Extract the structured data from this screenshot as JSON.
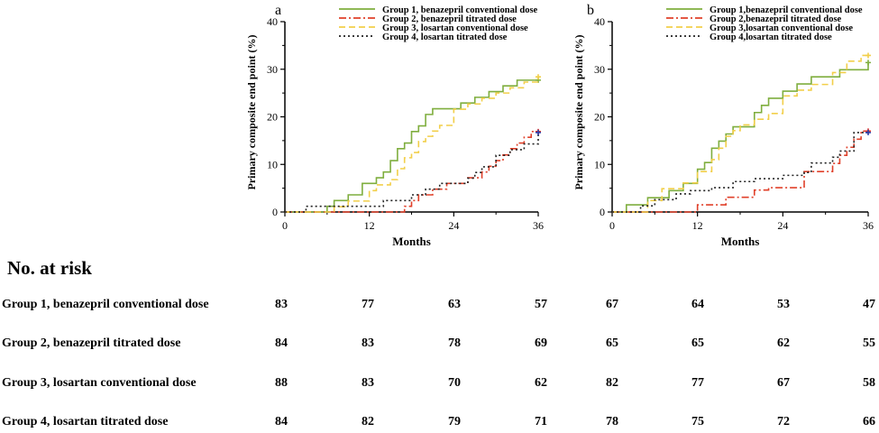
{
  "chart_data": [
    {
      "type": "line",
      "panel": "a",
      "ylabel": "Primary composite end point (%)",
      "xlabel": "Months",
      "xlim": [
        0,
        36
      ],
      "ylim": [
        0,
        40
      ],
      "x_ticks": [
        "0",
        "12",
        "24",
        "36"
      ],
      "y_ticks": [
        "0",
        "10",
        "20",
        "30",
        "40"
      ],
      "legend_position": "top-center",
      "series": [
        {
          "name": "Group 1, benazepril conventional dose",
          "color": "#7fae3e",
          "dash": "solid",
          "x": [
            0,
            3,
            6,
            7,
            9,
            11,
            13,
            14,
            15,
            16,
            17,
            18,
            19,
            20,
            21,
            23,
            25,
            27,
            29,
            31,
            33,
            35,
            36
          ],
          "y": [
            0,
            0,
            1.2,
            2.4,
            3.6,
            6.0,
            7.2,
            8.4,
            10.8,
            13.3,
            14.5,
            16.9,
            18.1,
            20.5,
            21.7,
            21.7,
            22.9,
            24.1,
            25.3,
            26.5,
            27.7,
            27.7,
            27.7
          ]
        },
        {
          "name": "Group 2, benazepril titrated dose",
          "color": "#e0402a",
          "dash": "dashdot",
          "x": [
            0,
            13,
            17,
            18,
            19,
            21,
            23,
            24,
            26,
            27,
            28,
            29,
            30,
            31,
            32,
            33,
            34,
            35,
            36
          ],
          "y": [
            0,
            0,
            1.2,
            2.4,
            3.6,
            4.8,
            6.0,
            6.0,
            7.2,
            7.2,
            8.4,
            9.6,
            10.8,
            12.0,
            13.3,
            14.5,
            15.7,
            16.9,
            16.9
          ]
        },
        {
          "name": "Group 3, losartan conventional dose",
          "color": "#f2cf4a",
          "dash": "dashed",
          "x": [
            0,
            5,
            7,
            9,
            12,
            13,
            15,
            16,
            17,
            18,
            19,
            20,
            21,
            22,
            24,
            26,
            28,
            30,
            32,
            34,
            36
          ],
          "y": [
            0,
            0,
            1.1,
            2.3,
            4.5,
            5.7,
            6.8,
            9.1,
            11.4,
            12.5,
            14.8,
            15.9,
            17.0,
            18.2,
            21.6,
            22.7,
            23.9,
            25.0,
            26.1,
            27.3,
            28.4
          ]
        },
        {
          "name": "Group 4, losartan titrated dose",
          "color": "#222222",
          "dash": "dotted",
          "x": [
            0,
            3,
            12,
            14,
            18,
            20,
            22,
            24,
            26,
            27,
            28,
            30,
            32,
            34,
            35,
            36
          ],
          "y": [
            0,
            1.2,
            1.2,
            2.4,
            3.6,
            4.8,
            6.0,
            6.0,
            7.1,
            8.3,
            9.5,
            11.9,
            13.1,
            14.3,
            14.3,
            16.7
          ]
        }
      ]
    },
    {
      "type": "line",
      "panel": "b",
      "ylabel": "Primary composite end point (%)",
      "xlabel": "Months",
      "xlim": [
        0,
        36
      ],
      "ylim": [
        0,
        40
      ],
      "x_ticks": [
        "0",
        "12",
        "24",
        "36"
      ],
      "y_ticks": [
        "0",
        "10",
        "20",
        "30",
        "40"
      ],
      "legend_position": "top-center",
      "series": [
        {
          "name": "Group 1,benazepril conventional dose",
          "color": "#7fae3e",
          "dash": "solid",
          "x": [
            0,
            2,
            5,
            8,
            10,
            12,
            13,
            14,
            15,
            16,
            17,
            20,
            21,
            22,
            24,
            26,
            28,
            30,
            32,
            34,
            36
          ],
          "y": [
            0,
            1.5,
            3.0,
            4.5,
            6.0,
            9.0,
            10.4,
            13.4,
            14.9,
            16.4,
            17.9,
            20.9,
            22.4,
            23.9,
            25.4,
            26.9,
            28.4,
            28.4,
            29.9,
            29.9,
            31.4
          ]
        },
        {
          "name": "Group 2,benazepril titrated dose",
          "color": "#e0402a",
          "dash": "dashdot",
          "x": [
            0,
            12,
            16,
            18,
            20,
            22,
            24,
            26,
            27,
            29,
            31,
            32,
            33,
            34,
            35,
            36
          ],
          "y": [
            0,
            1.5,
            3.1,
            3.1,
            4.6,
            5.1,
            5.1,
            5.1,
            8.5,
            8.5,
            10.2,
            11.9,
            13.6,
            15.3,
            17.0,
            17.0
          ]
        },
        {
          "name": "Group 3,losartan conventional dose",
          "color": "#f2cf4a",
          "dash": "dashed",
          "x": [
            0,
            5,
            7,
            10,
            12,
            14,
            15,
            16,
            17,
            18,
            20,
            22,
            24,
            26,
            28,
            31,
            33,
            35,
            36
          ],
          "y": [
            0,
            2.4,
            4.9,
            6.1,
            8.5,
            11.0,
            13.4,
            15.9,
            17.1,
            18.3,
            19.5,
            20.7,
            24.4,
            25.6,
            26.8,
            29.3,
            31.7,
            32.9,
            32.9
          ]
        },
        {
          "name": "Group 4,losartan titrated dose",
          "color": "#222222",
          "dash": "dotted",
          "x": [
            0,
            4,
            6,
            9,
            11,
            14,
            17,
            20,
            24,
            27,
            28,
            31,
            32,
            34,
            36
          ],
          "y": [
            0,
            1.3,
            2.6,
            3.8,
            4.5,
            5.1,
            6.4,
            7.0,
            7.7,
            8.3,
            10.3,
            11.5,
            12.8,
            16.7,
            16.7
          ]
        }
      ]
    }
  ],
  "risk_table": {
    "title": "No. at risk",
    "rows": [
      {
        "label": "Group 1, benazepril conventional dose",
        "values": [
          "83",
          "77",
          "63",
          "57",
          "67",
          "64",
          "53",
          "47"
        ]
      },
      {
        "label": "Group 2, benazepril titrated dose",
        "values": [
          "84",
          "83",
          "78",
          "69",
          "65",
          "65",
          "62",
          "55"
        ]
      },
      {
        "label": "Group 3, losartan conventional dose",
        "values": [
          "88",
          "83",
          "70",
          "62",
          "82",
          "77",
          "67",
          "58"
        ]
      },
      {
        "label": "Group 4, losartan titrated dose",
        "values": [
          "84",
          "82",
          "79",
          "71",
          "78",
          "75",
          "72",
          "66"
        ]
      }
    ]
  }
}
